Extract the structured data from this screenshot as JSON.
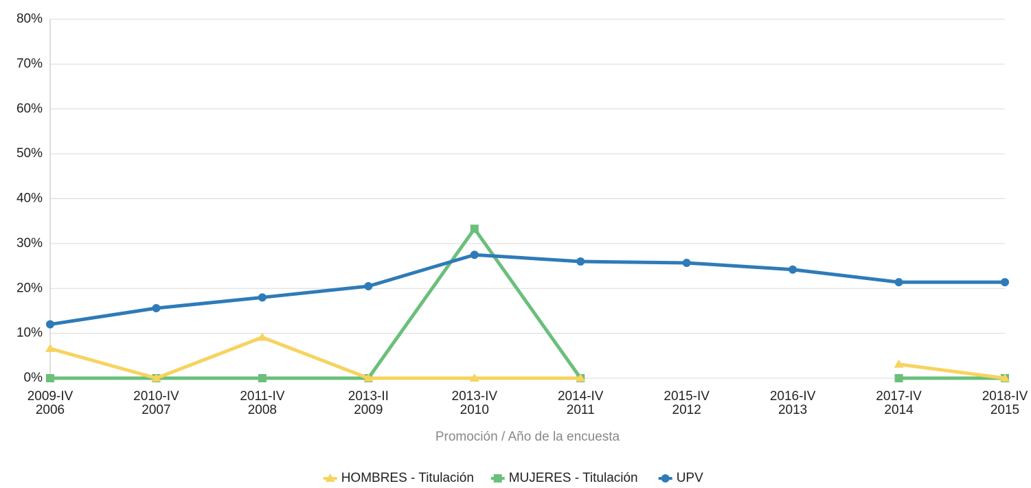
{
  "chart_data": {
    "type": "line",
    "x_label": "Promoción / Año de la encuesta",
    "categories": [
      [
        "2009-IV",
        "2006"
      ],
      [
        "2010-IV",
        "2007"
      ],
      [
        "2011-IV",
        "2008"
      ],
      [
        "2013-II",
        "2009"
      ],
      [
        "2013-IV",
        "2010"
      ],
      [
        "2014-IV",
        "2011"
      ],
      [
        "2015-IV",
        "2012"
      ],
      [
        "2016-IV",
        "2013"
      ],
      [
        "2017-IV",
        "2014"
      ],
      [
        "2018-IV",
        "2015"
      ]
    ],
    "series": [
      {
        "name": "HOMBRES - Titulación",
        "color": "#f7d35f",
        "marker": "triangle",
        "values": [
          6.6,
          0,
          9.1,
          0,
          0,
          0,
          null,
          null,
          3.1,
          0
        ]
      },
      {
        "name": "MUJERES - Titulación",
        "color": "#6abf7b",
        "marker": "square",
        "values": [
          0,
          0,
          0,
          0,
          33.3,
          0,
          null,
          null,
          0,
          0
        ]
      },
      {
        "name": "UPV",
        "color": "#2e7bb8",
        "marker": "circle",
        "values": [
          12,
          15.6,
          18,
          20.5,
          27.5,
          26,
          25.7,
          24.2,
          21.4,
          21.4
        ]
      }
    ],
    "ylim": [
      0,
      80
    ],
    "yticks": [
      {
        "value": 0,
        "label": "0%"
      },
      {
        "value": 10,
        "label": "10%"
      },
      {
        "value": 20,
        "label": "20%"
      },
      {
        "value": 30,
        "label": "30%"
      },
      {
        "value": 40,
        "label": "40%"
      },
      {
        "value": 50,
        "label": "50%"
      },
      {
        "value": 60,
        "label": "60%"
      },
      {
        "value": 70,
        "label": "70%"
      },
      {
        "value": 80,
        "label": "80%"
      }
    ],
    "grid": true,
    "legend": "bottom"
  }
}
